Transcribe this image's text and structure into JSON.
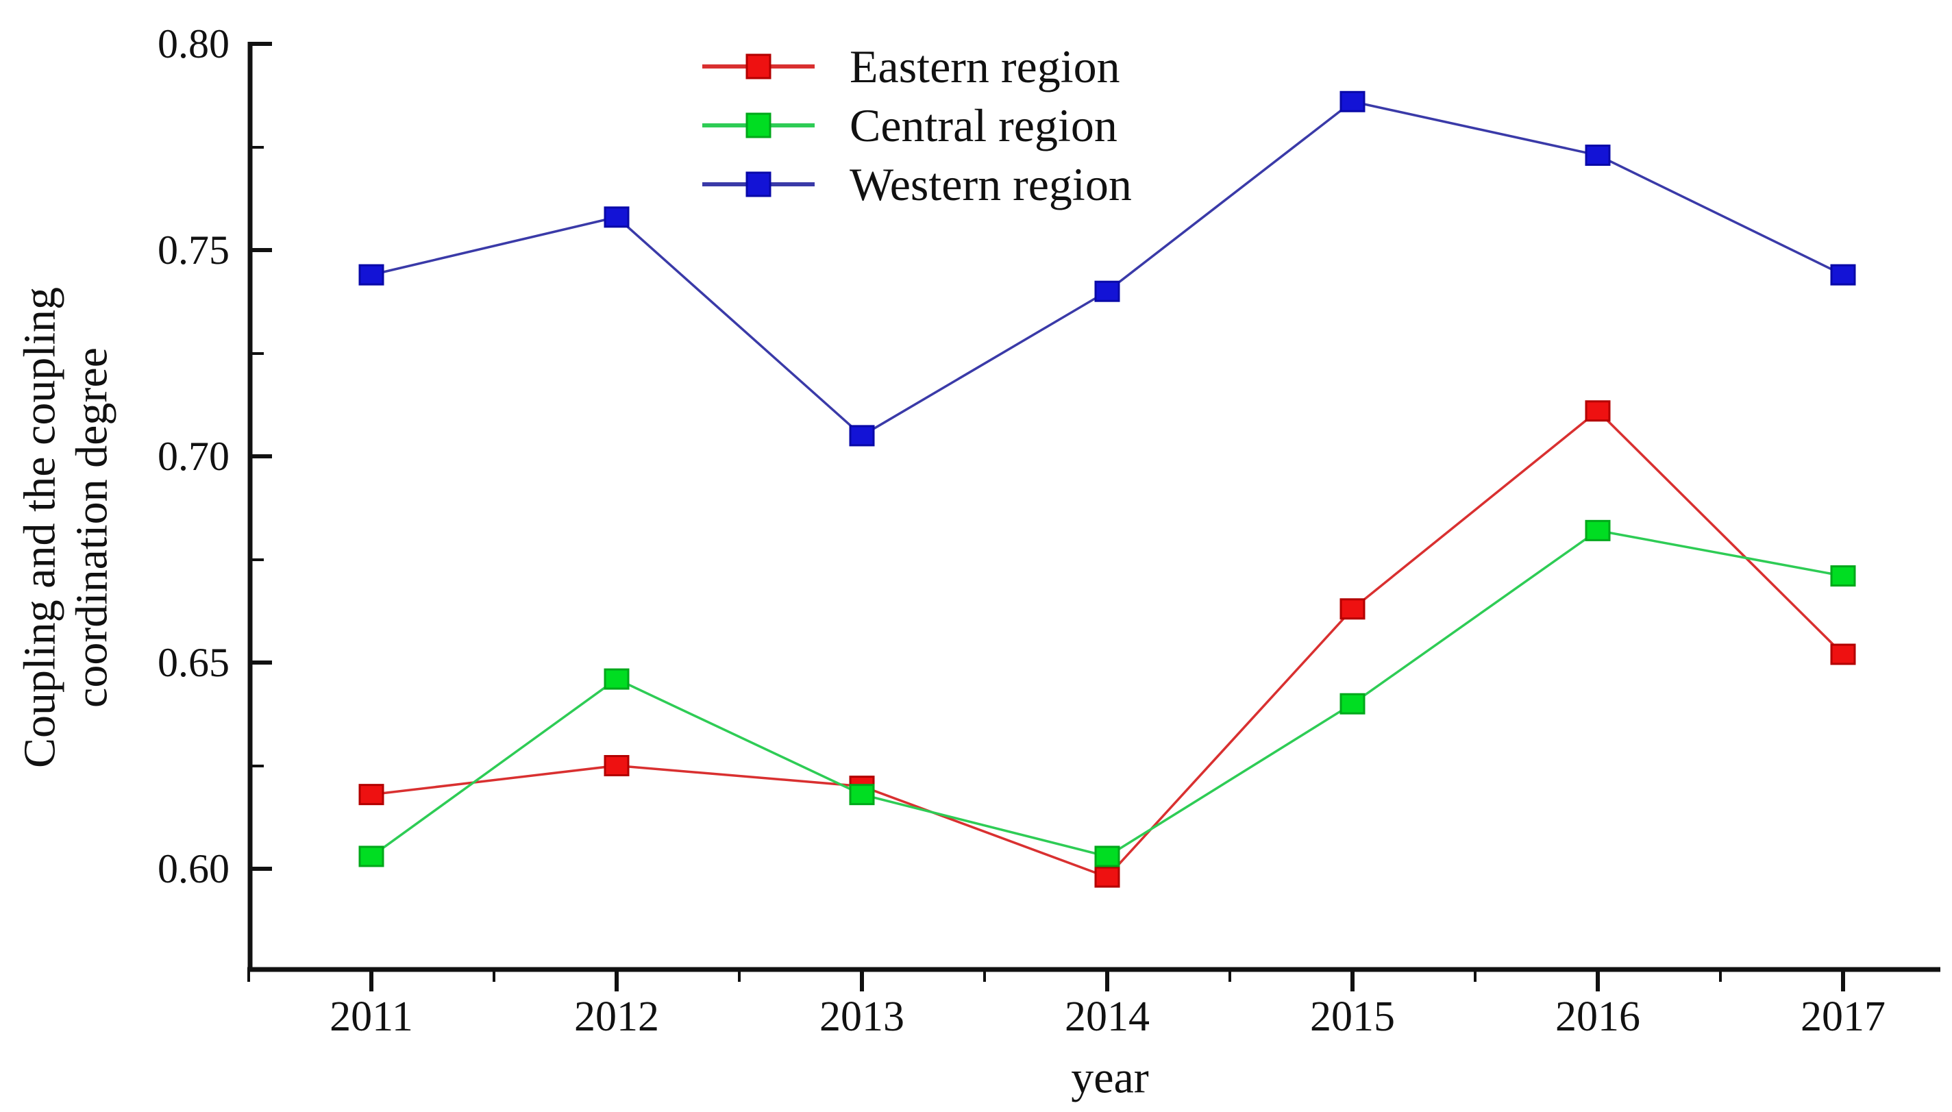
{
  "chart_data": {
    "type": "line",
    "title": "",
    "xlabel": "year",
    "ylabel_lines": [
      "Coupling and the coupling",
      "coordination degree"
    ],
    "x": [
      2011,
      2012,
      2013,
      2014,
      2015,
      2016,
      2017
    ],
    "x_tick_labels": [
      "2011",
      "2012",
      "2013",
      "2014",
      "2015",
      "2016",
      "2017"
    ],
    "y_tick_labels": [
      "0.80",
      "0.75",
      "0.70",
      "0.65",
      "0.60"
    ],
    "y_ticks": [
      0.8,
      0.75,
      0.7,
      0.65,
      0.6
    ],
    "y_minor_ticks": [
      0.775,
      0.725,
      0.675,
      0.625
    ],
    "ylim": [
      0.576,
      0.8
    ],
    "grid": false,
    "legend_position": "top-center",
    "series": [
      {
        "name": "Eastern region",
        "values": [
          0.618,
          0.625,
          0.62,
          0.598,
          0.663,
          0.711,
          0.652
        ],
        "line_color": "#d93030",
        "marker_color": "#ee1111",
        "marker_edge_color": "#b30000"
      },
      {
        "name": "Central region",
        "values": [
          0.603,
          0.646,
          0.618,
          0.603,
          0.64,
          0.682,
          0.671
        ],
        "line_color": "#2ecc55",
        "marker_color": "#00dd22",
        "marker_edge_color": "#00a81a"
      },
      {
        "name": "Western region",
        "values": [
          0.744,
          0.758,
          0.705,
          0.74,
          0.786,
          0.773,
          0.744
        ],
        "line_color": "#3a3aa8",
        "marker_color": "#1313d6",
        "marker_edge_color": "#0909a8"
      }
    ]
  }
}
